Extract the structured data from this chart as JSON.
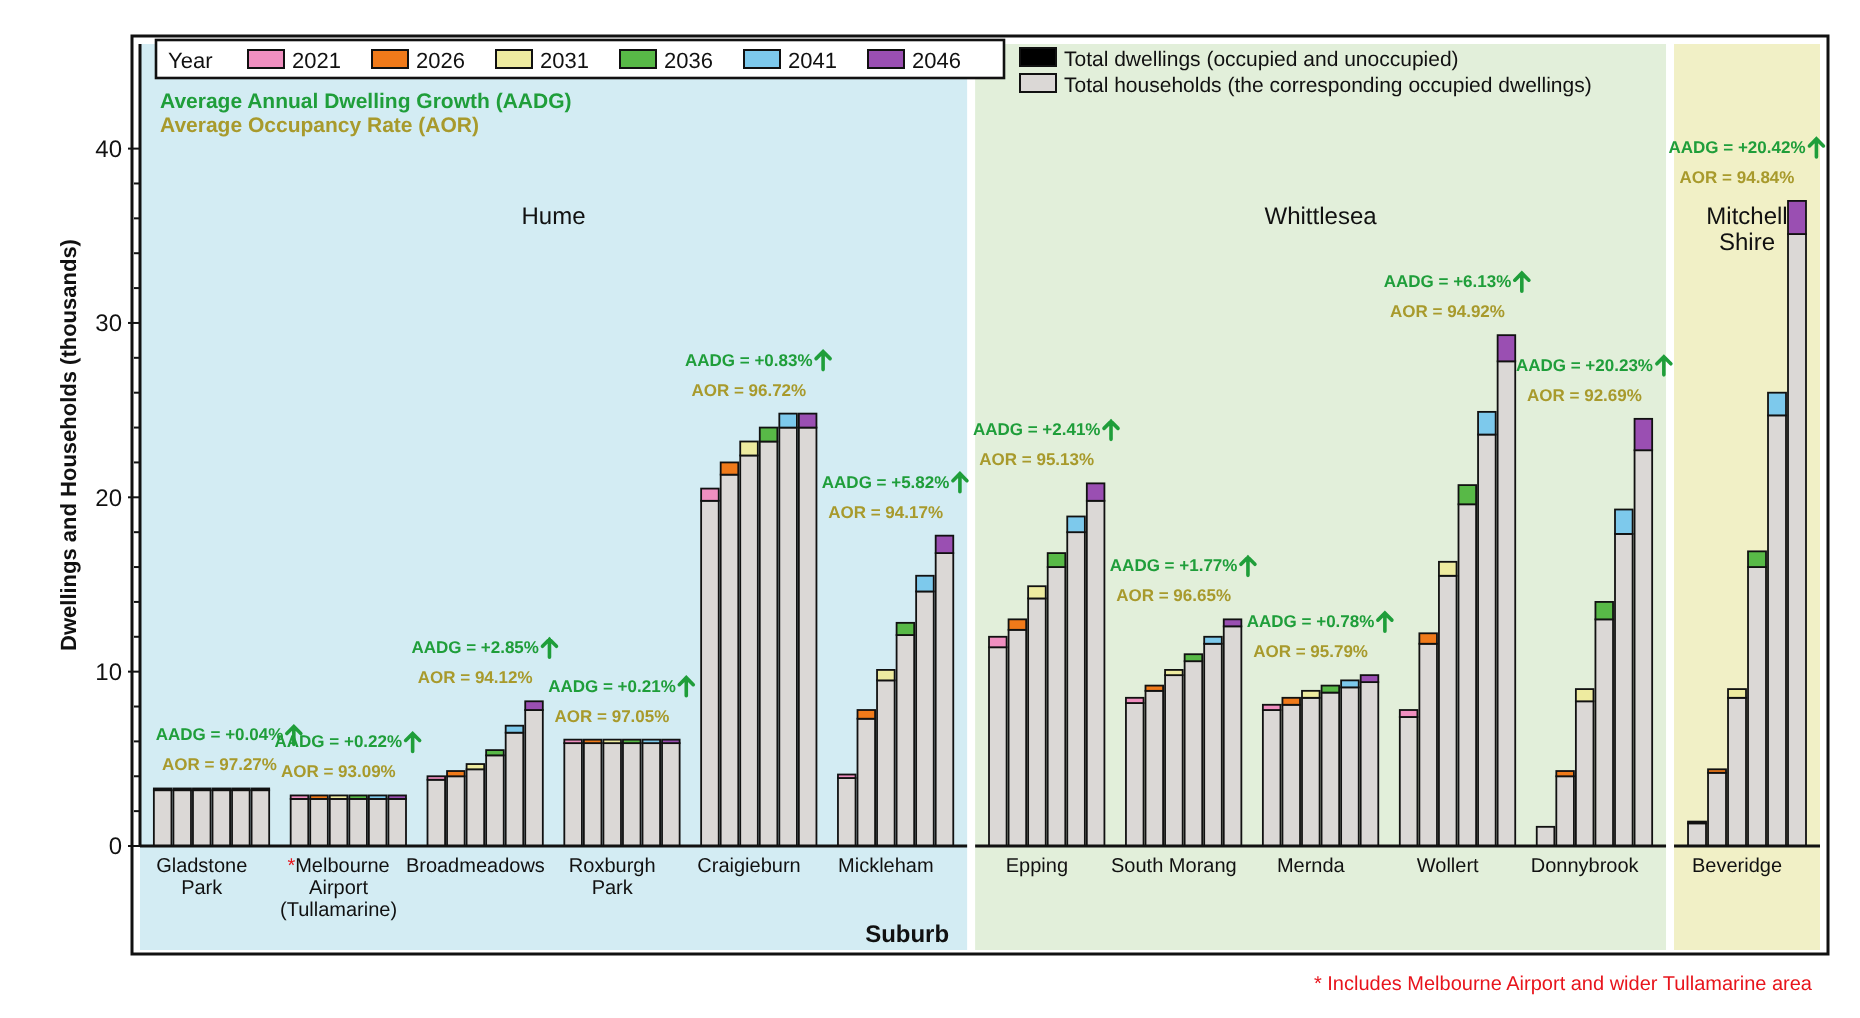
{
  "chart_data": [
    {
      "type": "bar",
      "stacked": true,
      "title": "Hume",
      "xlabel": "Suburb",
      "ylabel": "Dwellings and Households (thousands)",
      "legend_title": "Year",
      "legend": "top",
      "grid": false,
      "categories": [
        null,
        null,
        "Gladstone Park",
        null,
        null,
        null,
        null,
        null,
        null,
        "*Melbourne Airport (Tullamarine)",
        null,
        null,
        null,
        null,
        null,
        null,
        "Broadmeadows",
        null,
        null,
        null,
        null,
        null,
        null,
        "Roxburgh Park",
        null,
        null,
        null,
        null,
        null,
        null,
        "Craigieburn",
        null,
        null,
        null,
        null,
        null,
        null,
        "Mickleham",
        null,
        null,
        null
      ],
      "ylim": [
        0,
        46
      ],
      "yticks": [
        0,
        {
          "value": 2,
          "label": null
        },
        {
          "value": 4,
          "label": null
        },
        {
          "value": 6,
          "label": null
        },
        {
          "value": 8,
          "label": null
        },
        10,
        {
          "value": 12,
          "label": null
        },
        {
          "value": 14,
          "label": null
        },
        {
          "value": 16,
          "label": null
        },
        {
          "value": 18,
          "label": null
        },
        20,
        {
          "value": 22,
          "label": null
        },
        {
          "value": 24,
          "label": null
        },
        {
          "value": 26,
          "label": null
        },
        {
          "value": 28,
          "label": null
        },
        30,
        {
          "value": 32,
          "label": null
        },
        {
          "value": 34,
          "label": null
        },
        {
          "value": 36,
          "label": null
        },
        {
          "value": 38,
          "label": null
        },
        40
      ],
      "series": [
        {
          "name": "Total households (the corresponding occupied dwellings)",
          "color": "#dbd8d6",
          "values": [
            3.2,
            3.2,
            3.2,
            3.2,
            3.2,
            3.2,
            null,
            2.7,
            2.7,
            2.7,
            2.7,
            2.7,
            2.7,
            null,
            3.8,
            4.0,
            4.4,
            5.2,
            6.5,
            7.8,
            null,
            5.9,
            5.9,
            5.9,
            5.9,
            5.9,
            5.9,
            null,
            19.8,
            21.3,
            22.4,
            23.2,
            24.0,
            24.0,
            null,
            3.9,
            7.3,
            9.5,
            12.1,
            14.6,
            16.8
          ]
        },
        {
          "name": "2021",
          "color": "#f08fc0",
          "values": [
            0.1,
            null,
            null,
            null,
            null,
            null,
            null,
            0.2,
            null,
            null,
            null,
            null,
            null,
            null,
            0.2,
            null,
            null,
            null,
            null,
            null,
            null,
            0.2,
            null,
            null,
            null,
            null,
            null,
            null,
            0.7,
            null,
            null,
            null,
            null,
            null,
            null,
            0.2,
            null,
            null,
            null,
            null,
            null
          ]
        },
        {
          "name": "2026",
          "color": "#f07a1a",
          "values": [
            null,
            0.1,
            null,
            null,
            null,
            null,
            null,
            null,
            0.2,
            null,
            null,
            null,
            null,
            null,
            null,
            0.3,
            null,
            null,
            null,
            null,
            null,
            null,
            0.2,
            null,
            null,
            null,
            null,
            null,
            null,
            0.7,
            null,
            null,
            null,
            null,
            null,
            null,
            0.5,
            null,
            null,
            null,
            null
          ]
        },
        {
          "name": "2031",
          "color": "#eeeba0",
          "values": [
            null,
            null,
            0.1,
            null,
            null,
            null,
            null,
            null,
            null,
            0.2,
            null,
            null,
            null,
            null,
            null,
            null,
            0.3,
            null,
            null,
            null,
            null,
            null,
            null,
            0.2,
            null,
            null,
            null,
            null,
            null,
            null,
            0.8,
            null,
            null,
            null,
            null,
            null,
            null,
            0.6,
            null,
            null,
            null
          ]
        },
        {
          "name": "2036",
          "color": "#58b947",
          "values": [
            null,
            null,
            null,
            0.1,
            null,
            null,
            null,
            null,
            null,
            null,
            0.2,
            null,
            null,
            null,
            null,
            null,
            null,
            0.3,
            null,
            null,
            null,
            null,
            null,
            null,
            0.2,
            null,
            null,
            null,
            null,
            null,
            null,
            0.8,
            null,
            null,
            null,
            null,
            null,
            null,
            0.7,
            null,
            null
          ]
        },
        {
          "name": "2041",
          "color": "#7dc9ec",
          "values": [
            null,
            null,
            null,
            null,
            0.1,
            null,
            null,
            null,
            null,
            null,
            null,
            0.2,
            null,
            null,
            null,
            null,
            null,
            null,
            0.4,
            null,
            null,
            null,
            null,
            null,
            null,
            0.2,
            null,
            null,
            null,
            null,
            null,
            null,
            0.8,
            null,
            null,
            null,
            null,
            null,
            null,
            0.9,
            null
          ]
        },
        {
          "name": "2046",
          "color": "#9a4fb2",
          "values": [
            null,
            null,
            null,
            null,
            null,
            0.1,
            null,
            null,
            null,
            null,
            null,
            null,
            0.2,
            null,
            null,
            null,
            null,
            null,
            null,
            0.5,
            null,
            null,
            null,
            null,
            null,
            null,
            0.2,
            null,
            null,
            null,
            null,
            null,
            null,
            0.8,
            null,
            null,
            null,
            null,
            null,
            null,
            1.0
          ]
        }
      ],
      "annotations": [
        "Average Annual Dwelling Growth (AADG)",
        "Average Occupancy Rate (AOR)",
        "Total dwellings (occupied and unoccupied)",
        "* Includes Melbourne Airport and wider Tullamarine area",
        "AADG = +0.04%",
        "AOR = 97.27%",
        "AADG = +0.22%",
        "AOR = 93.09%",
        "AADG = +2.85%",
        "AOR = 94.12%",
        "AADG = +0.21%",
        "AOR = 97.05%",
        "AADG = +0.83%",
        "AOR = 96.72%",
        "AADG = +5.82%",
        "AOR = 94.17%"
      ]
    },
    {
      "type": "bar",
      "stacked": true,
      "title": "Whittlesea",
      "tick_labels": "x",
      "categories": [
        null,
        null,
        "Epping",
        null,
        null,
        null,
        null,
        null,
        null,
        "South Morang",
        null,
        null,
        null,
        null,
        null,
        null,
        "Mernda",
        null,
        null,
        null,
        null,
        null,
        null,
        "Wollert",
        null,
        null,
        null,
        null,
        null,
        null,
        "Donnybrook",
        null,
        null,
        null
      ],
      "ylim": [
        0,
        46
      ],
      "series": [
        {
          "color": "#dbd8d6",
          "values": [
            11.4,
            12.4,
            14.2,
            16.0,
            18.0,
            19.8,
            null,
            8.2,
            8.9,
            9.8,
            10.6,
            11.6,
            12.6,
            null,
            7.8,
            8.1,
            8.5,
            8.8,
            9.1,
            9.4,
            null,
            7.4,
            11.6,
            15.5,
            19.6,
            23.6,
            27.8,
            null,
            1.1,
            4.0,
            8.3,
            13.0,
            17.9,
            22.7
          ]
        },
        {
          "color": "#f08fc0",
          "values": [
            0.6,
            null,
            null,
            null,
            null,
            null,
            null,
            0.3,
            null,
            null,
            null,
            null,
            null,
            null,
            0.3,
            null,
            null,
            null,
            null,
            null,
            null,
            0.4,
            null,
            null,
            null,
            null,
            null,
            null,
            null,
            null,
            null,
            null,
            null,
            null
          ]
        },
        {
          "color": "#f07a1a",
          "values": [
            null,
            0.6,
            null,
            null,
            null,
            null,
            null,
            null,
            0.3,
            null,
            null,
            null,
            null,
            null,
            null,
            0.4,
            null,
            null,
            null,
            null,
            null,
            null,
            0.6,
            null,
            null,
            null,
            null,
            null,
            null,
            0.3,
            null,
            null,
            null,
            null
          ]
        },
        {
          "color": "#eeeba0",
          "values": [
            null,
            null,
            0.7,
            null,
            null,
            null,
            null,
            null,
            null,
            0.3,
            null,
            null,
            null,
            null,
            null,
            null,
            0.4,
            null,
            null,
            null,
            null,
            null,
            null,
            0.8,
            null,
            null,
            null,
            null,
            null,
            null,
            0.7,
            null,
            null,
            null
          ]
        },
        {
          "color": "#58b947",
          "values": [
            null,
            null,
            null,
            0.8,
            null,
            null,
            null,
            null,
            null,
            null,
            0.4,
            null,
            null,
            null,
            null,
            null,
            null,
            0.4,
            null,
            null,
            null,
            null,
            null,
            null,
            1.1,
            null,
            null,
            null,
            null,
            null,
            null,
            1.0,
            null,
            null
          ]
        },
        {
          "color": "#7dc9ec",
          "values": [
            null,
            null,
            null,
            null,
            0.9,
            null,
            null,
            null,
            null,
            null,
            null,
            0.4,
            null,
            null,
            null,
            null,
            null,
            null,
            0.4,
            null,
            null,
            null,
            null,
            null,
            null,
            1.3,
            null,
            null,
            null,
            null,
            null,
            null,
            1.4,
            null
          ]
        },
        {
          "color": "#9a4fb2",
          "values": [
            null,
            null,
            null,
            null,
            null,
            1.0,
            null,
            null,
            null,
            null,
            null,
            null,
            0.4,
            null,
            null,
            null,
            null,
            null,
            null,
            0.4,
            null,
            null,
            null,
            null,
            null,
            null,
            1.5,
            null,
            null,
            null,
            null,
            null,
            null,
            1.8
          ]
        }
      ],
      "annotations": [
        "AADG = +2.41%",
        "AOR = 95.13%",
        "AADG = +1.77%",
        "AOR = 96.65%",
        "AADG = +0.78%",
        "AOR = 95.79%",
        "AADG = +6.13%",
        "AOR = 94.92%",
        "AADG = +20.23%",
        "AOR = 92.69%"
      ]
    },
    {
      "type": "bar",
      "stacked": true,
      "title": "Mitchell Shire",
      "tick_labels": "x",
      "categories": [
        null,
        null,
        "Beveridge",
        null,
        null,
        null
      ],
      "ylim": [
        0,
        46
      ],
      "series": [
        {
          "color": "#dbd8d6",
          "values": [
            1.3,
            4.2,
            8.5,
            16.0,
            24.7,
            35.1
          ]
        },
        {
          "color": "#f08fc0",
          "values": [
            0.1,
            null,
            null,
            null,
            null,
            null
          ]
        },
        {
          "color": "#f07a1a",
          "values": [
            null,
            0.2,
            null,
            null,
            null,
            null
          ]
        },
        {
          "color": "#eeeba0",
          "values": [
            null,
            null,
            0.5,
            null,
            null,
            null
          ]
        },
        {
          "color": "#58b947",
          "values": [
            null,
            null,
            null,
            0.9,
            null,
            null
          ]
        },
        {
          "color": "#7dc9ec",
          "values": [
            null,
            null,
            null,
            null,
            1.3,
            null
          ]
        },
        {
          "color": "#9a4fb2",
          "values": [
            null,
            null,
            null,
            null,
            null,
            1.9
          ]
        }
      ],
      "annotations": [
        "AADG = +20.42%",
        "AOR = 94.84%"
      ]
    }
  ]
}
